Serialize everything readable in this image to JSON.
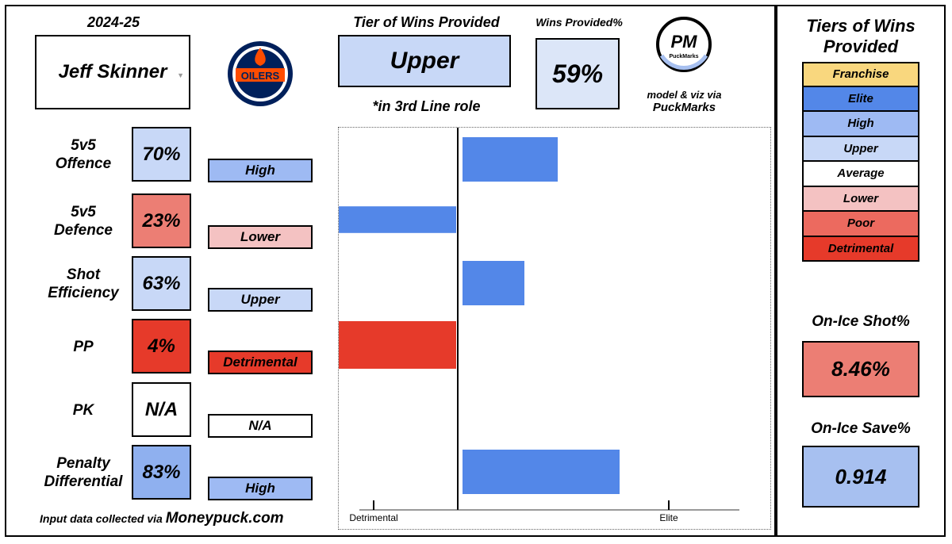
{
  "season": "2024-25",
  "player": {
    "name": "Jeff Skinner",
    "dropdown_icon": "caret-down"
  },
  "team_logo": {
    "text": "OILERS",
    "primary": "#00205B",
    "accent": "#FF4C00"
  },
  "tier_header": "Tier of Wins Provided",
  "tier_value": "Upper",
  "role_note": "*in 3rd Line role",
  "wins_header": "Wins Provided%",
  "wins_value": "59%",
  "brand": {
    "logo_text": "PM",
    "logo_subtext": "PuckMarks",
    "credit_line1": "model & viz via",
    "credit_line2": "PuckMarks"
  },
  "metrics": [
    {
      "label1": "5v5",
      "label2": "Offence",
      "pct": "70%",
      "tier": "High",
      "pct_color": "#c8d8f7",
      "tier_color": "#9ebaf3"
    },
    {
      "label1": "5v5",
      "label2": "Defence",
      "pct": "23%",
      "tier": "Lower",
      "pct_color": "#ec7e74",
      "tier_color": "#f4c2c2"
    },
    {
      "label1": "Shot",
      "label2": "Efficiency",
      "pct": "63%",
      "tier": "Upper",
      "pct_color": "#c8d8f7",
      "tier_color": "#c8d8f7"
    },
    {
      "label1": "PP",
      "label2": "",
      "pct": "4%",
      "tier": "Detrimental",
      "pct_color": "#e63a2a",
      "tier_color": "#e63a2a"
    },
    {
      "label1": "PK",
      "label2": "",
      "pct": "N/A",
      "tier": "N/A",
      "pct_color": "#ffffff",
      "tier_color": "#ffffff"
    },
    {
      "label1": "Penalty",
      "label2": "Differential",
      "pct": "83%",
      "tier": "High",
      "pct_color": "#8fb0ef",
      "tier_color": "#9ebaf3"
    }
  ],
  "chart_data": {
    "type": "bar",
    "orientation": "horizontal",
    "categories": [
      "5v5 Offence",
      "5v5 Defence",
      "Shot Efficiency",
      "PP",
      "PK",
      "Penalty Differential"
    ],
    "values": [
      0.7,
      0.23,
      0.63,
      0.04,
      null,
      0.83
    ],
    "x_tick_labels": [
      "Detrimental",
      "Elite"
    ],
    "colors": [
      "#5387e8",
      "#5387e8",
      "#5387e8",
      "#e63a2a",
      null,
      "#5387e8"
    ]
  },
  "footer": {
    "prefix": "Input data collected via ",
    "source": "Moneypuck.com"
  },
  "legend": {
    "title1": "Tiers of Wins",
    "title2": "Provided",
    "items": [
      {
        "label": "Franchise",
        "color": "#f9d77e"
      },
      {
        "label": "Elite",
        "color": "#5387e8"
      },
      {
        "label": "High",
        "color": "#9ebaf3"
      },
      {
        "label": "Upper",
        "color": "#c8d8f7"
      },
      {
        "label": "Average",
        "color": "#ffffff"
      },
      {
        "label": "Lower",
        "color": "#f4c2c2"
      },
      {
        "label": "Poor",
        "color": "#ec6a5f"
      },
      {
        "label": "Detrimental",
        "color": "#e63a2a"
      }
    ]
  },
  "on_ice_shot": {
    "label": "On-Ice Shot%",
    "value": "8.46%",
    "color": "#ec7e74"
  },
  "on_ice_save": {
    "label": "On-Ice Save%",
    "value": "0.914",
    "color": "#a7c0f0"
  }
}
